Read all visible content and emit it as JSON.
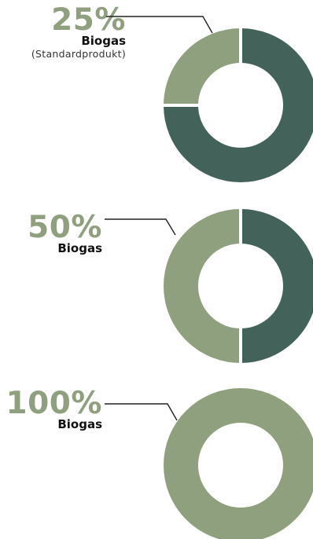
{
  "colors": {
    "biogas": "#8fa07f",
    "other": "#43635a",
    "separator": "#ffffff",
    "leader_line": "#222222"
  },
  "chart_data": [
    {
      "type": "pie",
      "variant": "donut",
      "label": {
        "percent": "25%",
        "name": "Biogas",
        "note": "(Standardprodukt)"
      },
      "slices": [
        {
          "key": "other",
          "value": 75
        },
        {
          "key": "biogas",
          "value": 25
        }
      ]
    },
    {
      "type": "pie",
      "variant": "donut",
      "label": {
        "percent": "50%",
        "name": "Biogas"
      },
      "slices": [
        {
          "key": "other",
          "value": 50
        },
        {
          "key": "biogas",
          "value": 50
        }
      ]
    },
    {
      "type": "pie",
      "variant": "donut",
      "label": {
        "percent": "100%",
        "name": "Biogas"
      },
      "slices": [
        {
          "key": "biogas",
          "value": 100
        }
      ]
    }
  ]
}
